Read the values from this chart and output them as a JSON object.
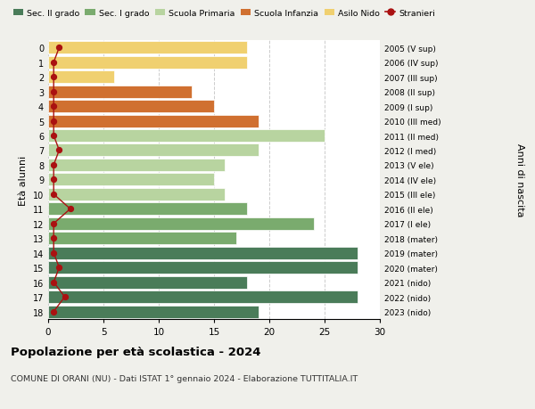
{
  "ages": [
    18,
    17,
    16,
    15,
    14,
    13,
    12,
    11,
    10,
    9,
    8,
    7,
    6,
    5,
    4,
    3,
    2,
    1,
    0
  ],
  "right_labels": [
    "2005 (V sup)",
    "2006 (IV sup)",
    "2007 (III sup)",
    "2008 (II sup)",
    "2009 (I sup)",
    "2010 (III med)",
    "2011 (II med)",
    "2012 (I med)",
    "2013 (V ele)",
    "2014 (IV ele)",
    "2015 (III ele)",
    "2016 (II ele)",
    "2017 (I ele)",
    "2018 (mater)",
    "2019 (mater)",
    "2020 (mater)",
    "2021 (nido)",
    "2022 (nido)",
    "2023 (nido)"
  ],
  "bar_values": [
    19,
    28,
    18,
    28,
    28,
    17,
    24,
    18,
    16,
    15,
    16,
    19,
    25,
    19,
    15,
    13,
    6,
    18,
    18
  ],
  "bar_colors": [
    "#4a7c59",
    "#4a7c59",
    "#4a7c59",
    "#4a7c59",
    "#4a7c59",
    "#7aab6e",
    "#7aab6e",
    "#7aab6e",
    "#b8d4a0",
    "#b8d4a0",
    "#b8d4a0",
    "#b8d4a0",
    "#b8d4a0",
    "#d07030",
    "#d07030",
    "#d07030",
    "#f0d070",
    "#f0d070",
    "#f0d070"
  ],
  "stranieri_values": [
    0.5,
    1.5,
    0.5,
    1.0,
    0.5,
    0.5,
    0.5,
    2.0,
    0.5,
    0.5,
    0.5,
    1.0,
    0.5,
    0.5,
    0.5,
    0.5,
    0.5,
    0.5,
    1.0
  ],
  "stranieri_color": "#aa1111",
  "legend_labels": [
    "Sec. II grado",
    "Sec. I grado",
    "Scuola Primaria",
    "Scuola Infanzia",
    "Asilo Nido",
    "Stranieri"
  ],
  "legend_colors": [
    "#4a7c59",
    "#7aab6e",
    "#b8d4a0",
    "#d07030",
    "#f0d070",
    "#aa1111"
  ],
  "ylabel_left": "Età alunni",
  "ylabel_right": "Anni di nascita",
  "xlim": [
    0,
    30
  ],
  "xticks": [
    0,
    5,
    10,
    15,
    20,
    25,
    30
  ],
  "title": "Popolazione per età scolastica - 2024",
  "subtitle": "COMUNE DI ORANI (NU) - Dati ISTAT 1° gennaio 2024 - Elaborazione TUTTITALIA.IT",
  "bg_color": "#f0f0eb",
  "plot_bg_color": "#ffffff"
}
